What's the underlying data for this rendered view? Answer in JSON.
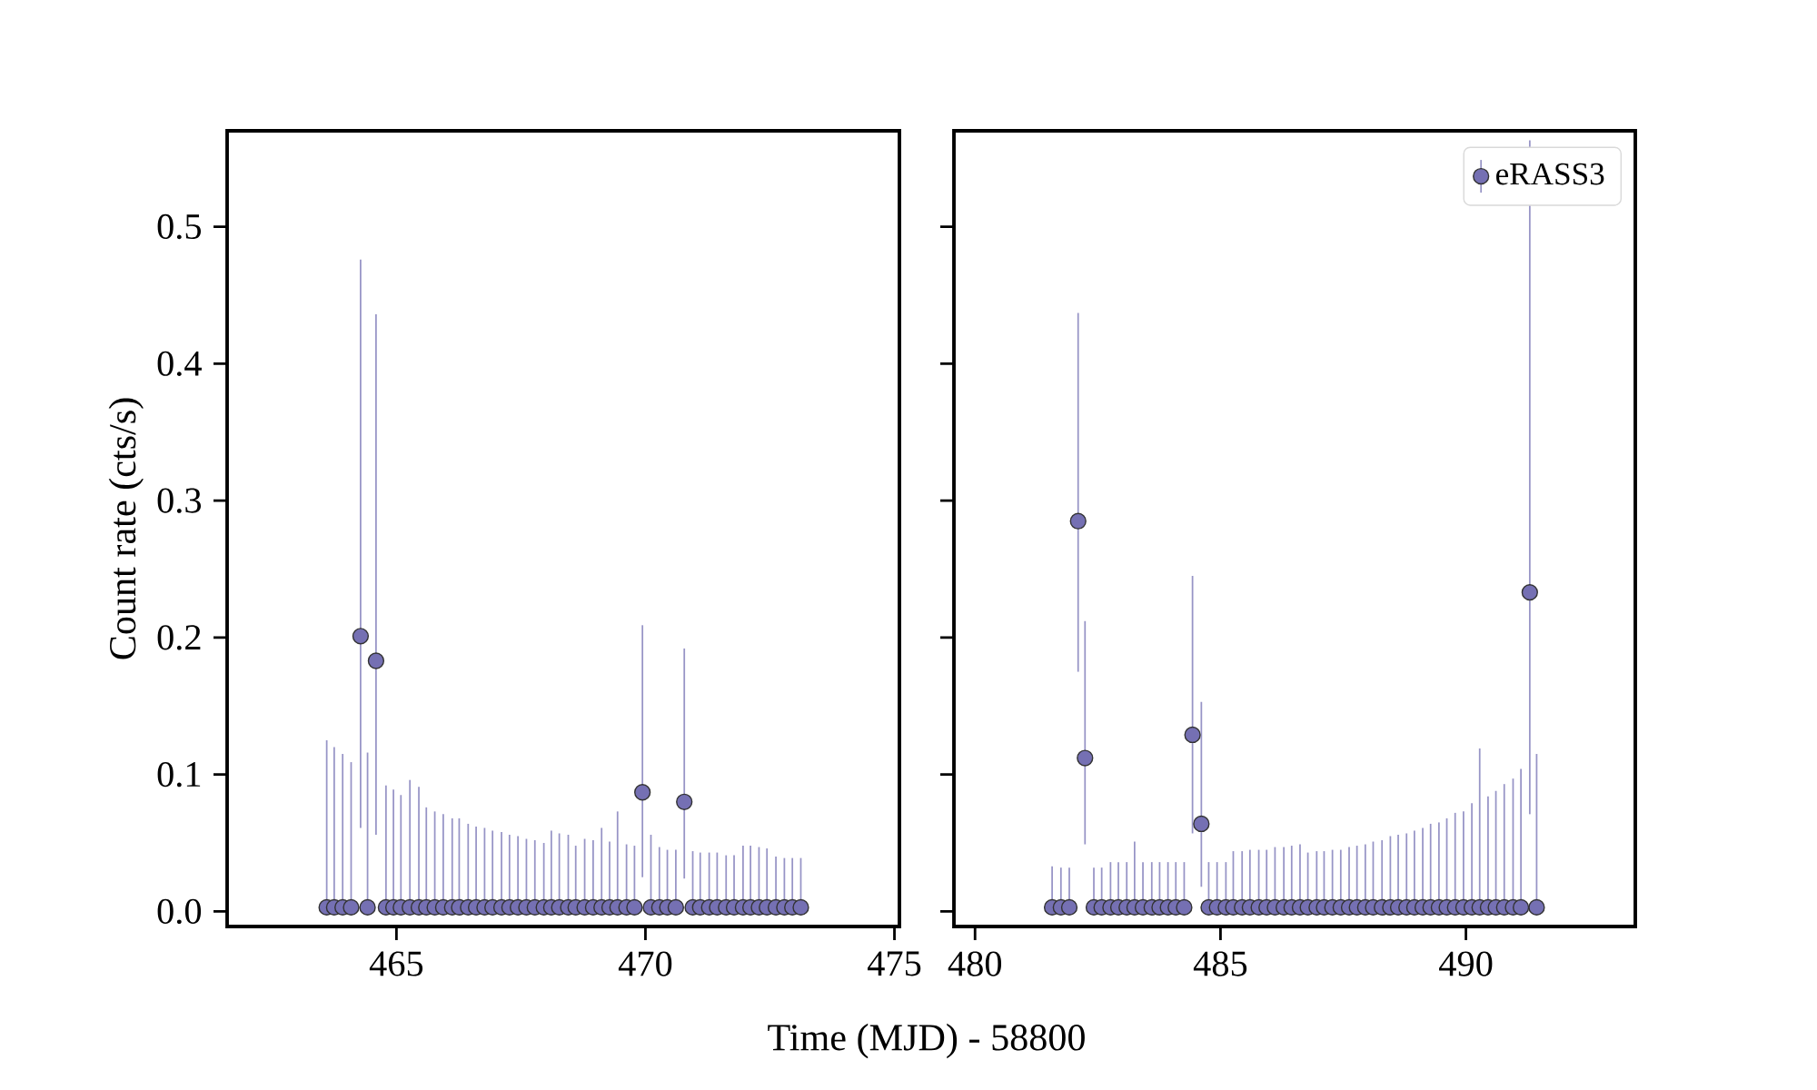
{
  "chart_data": [
    {
      "type": "scatter",
      "xlabel": "Time (MJD) - 58800",
      "ylabel": "Count rate (cts/s)",
      "marker": "circle",
      "legend": false,
      "xlim": [
        461.6,
        475.1
      ],
      "ylim": [
        -0.011,
        0.57
      ],
      "xticks": [
        465,
        470,
        475
      ],
      "yticks": [
        {
          "value": 0,
          "label": "0.0"
        },
        0.1,
        0.2,
        0.3,
        0.4,
        0.5
      ],
      "series": [
        {
          "color": "#7570b3",
          "x": [
            463.6,
            463.75,
            463.92,
            464.09,
            464.28,
            464.42,
            464.59,
            464.79,
            464.94,
            465.09,
            465.27,
            465.45,
            465.6,
            465.77,
            465.94,
            466.12,
            466.26,
            466.44,
            466.6,
            466.77,
            466.93,
            467.11,
            467.27,
            467.44,
            467.61,
            467.78,
            467.96,
            468.11,
            468.27,
            468.45,
            468.6,
            468.78,
            468.95,
            469.12,
            469.28,
            469.44,
            469.62,
            469.78,
            469.94,
            470.11,
            470.28,
            470.44,
            470.61,
            470.78,
            470.95,
            471.1,
            471.28,
            471.44,
            471.62,
            471.78,
            471.96,
            472.11,
            472.28,
            472.44,
            472.62,
            472.79,
            472.95,
            473.12
          ],
          "values": [
            0.003,
            0.003,
            0.003,
            0.003,
            0.201,
            0.003,
            0.183,
            0.003,
            0.003,
            0.003,
            0.003,
            0.003,
            0.003,
            0.003,
            0.003,
            0.003,
            0.003,
            0.003,
            0.003,
            0.003,
            0.003,
            0.003,
            0.003,
            0.003,
            0.003,
            0.003,
            0.003,
            0.003,
            0.003,
            0.003,
            0.003,
            0.003,
            0.003,
            0.003,
            0.003,
            0.003,
            0.003,
            0.003,
            0.087,
            0.003,
            0.003,
            0.003,
            0.003,
            0.08,
            0.003,
            0.003,
            0.003,
            0.003,
            0.003,
            0.003,
            0.003,
            0.003,
            0.003,
            0.003,
            0.003,
            0.003,
            0.003,
            0.003
          ],
          "errors": [
            [
              0,
              0.125
            ],
            [
              0,
              0.12
            ],
            [
              0,
              0.115
            ],
            [
              0,
              0.109
            ],
            [
              0.061,
              0.476
            ],
            [
              0,
              0.116
            ],
            [
              0.056,
              0.436
            ],
            [
              0,
              0.092
            ],
            [
              0,
              0.089
            ],
            [
              0,
              0.085
            ],
            [
              0,
              0.096
            ],
            [
              0,
              0.091
            ],
            [
              0,
              0.076
            ],
            [
              0,
              0.073
            ],
            [
              0,
              0.071
            ],
            [
              0,
              0.068
            ],
            [
              0,
              0.068
            ],
            [
              0,
              0.064
            ],
            [
              0,
              0.062
            ],
            [
              0,
              0.061
            ],
            [
              0,
              0.059
            ],
            [
              0,
              0.058
            ],
            [
              0,
              0.056
            ],
            [
              0,
              0.055
            ],
            [
              0,
              0.053
            ],
            [
              0,
              0.052
            ],
            [
              0,
              0.05
            ],
            [
              0,
              0.059
            ],
            [
              0,
              0.057
            ],
            [
              0,
              0.056
            ],
            [
              0,
              0.048
            ],
            [
              0,
              0.053
            ],
            [
              0,
              0.052
            ],
            [
              0,
              0.061
            ],
            [
              0,
              0.051
            ],
            [
              0,
              0.073
            ],
            [
              0,
              0.049
            ],
            [
              0,
              0.048
            ],
            [
              0.025,
              0.209
            ],
            [
              0,
              0.056
            ],
            [
              0,
              0.047
            ],
            [
              0,
              0.045
            ],
            [
              0,
              0.045
            ],
            [
              0.024,
              0.192
            ],
            [
              0,
              0.044
            ],
            [
              0,
              0.043
            ],
            [
              0,
              0.043
            ],
            [
              0,
              0.043
            ],
            [
              0,
              0.041
            ],
            [
              0,
              0.041
            ],
            [
              0,
              0.048
            ],
            [
              0,
              0.048
            ],
            [
              0,
              0.047
            ],
            [
              0,
              0.046
            ],
            [
              0,
              0.04
            ],
            [
              0,
              0.039
            ],
            [
              0,
              0.039
            ],
            [
              0,
              0.039
            ]
          ]
        }
      ]
    },
    {
      "type": "scatter",
      "marker": "circle",
      "legend": "top right",
      "tick_labels": "x",
      "xlim": [
        479.57,
        493.45
      ],
      "ylim": [
        -0.011,
        0.57
      ],
      "xticks": [
        480,
        485,
        490
      ],
      "yticks": [
        0,
        0.1,
        0.2,
        0.3,
        0.4,
        0.5
      ],
      "series": [
        {
          "name": "eRASS3",
          "color": "#7570b3",
          "x": [
            481.57,
            481.75,
            481.92,
            482.1,
            482.24,
            482.42,
            482.58,
            482.76,
            482.92,
            483.09,
            483.25,
            483.42,
            483.6,
            483.76,
            483.93,
            484.09,
            484.26,
            484.43,
            484.61,
            484.76,
            484.93,
            485.11,
            485.26,
            485.44,
            485.6,
            485.78,
            485.94,
            486.11,
            486.29,
            486.45,
            486.62,
            486.78,
            486.96,
            487.11,
            487.28,
            487.45,
            487.62,
            487.78,
            487.95,
            488.11,
            488.29,
            488.46,
            488.62,
            488.79,
            488.95,
            489.12,
            489.28,
            489.45,
            489.61,
            489.78,
            489.95,
            490.12,
            490.28,
            490.45,
            490.61,
            490.78,
            490.96,
            491.12,
            491.3,
            491.44
          ],
          "values": [
            0.003,
            0.003,
            0.003,
            0.285,
            0.112,
            0.003,
            0.003,
            0.003,
            0.003,
            0.003,
            0.003,
            0.003,
            0.003,
            0.003,
            0.003,
            0.003,
            0.003,
            0.129,
            0.064,
            0.003,
            0.003,
            0.003,
            0.003,
            0.003,
            0.003,
            0.003,
            0.003,
            0.003,
            0.003,
            0.003,
            0.003,
            0.003,
            0.003,
            0.003,
            0.003,
            0.003,
            0.003,
            0.003,
            0.003,
            0.003,
            0.003,
            0.003,
            0.003,
            0.003,
            0.003,
            0.003,
            0.003,
            0.003,
            0.003,
            0.003,
            0.003,
            0.003,
            0.003,
            0.003,
            0.003,
            0.003,
            0.003,
            0.003,
            0.233,
            0.003
          ],
          "errors": [
            [
              0,
              0.033
            ],
            [
              0,
              0.032
            ],
            [
              0,
              0.032
            ],
            [
              0.175,
              0.437
            ],
            [
              0.049,
              0.212
            ],
            [
              0,
              0.032
            ],
            [
              0,
              0.032
            ],
            [
              0,
              0.036
            ],
            [
              0,
              0.036
            ],
            [
              0,
              0.036
            ],
            [
              0,
              0.051
            ],
            [
              0,
              0.036
            ],
            [
              0,
              0.036
            ],
            [
              0,
              0.036
            ],
            [
              0,
              0.036
            ],
            [
              0,
              0.036
            ],
            [
              0,
              0.036
            ],
            [
              0.057,
              0.245
            ],
            [
              0.018,
              0.153
            ],
            [
              0,
              0.036
            ],
            [
              0,
              0.036
            ],
            [
              0,
              0.036
            ],
            [
              0,
              0.044
            ],
            [
              0,
              0.044
            ],
            [
              0,
              0.045
            ],
            [
              0,
              0.045
            ],
            [
              0,
              0.045
            ],
            [
              0,
              0.047
            ],
            [
              0,
              0.047
            ],
            [
              0,
              0.048
            ],
            [
              0,
              0.049
            ],
            [
              0,
              0.043
            ],
            [
              0,
              0.044
            ],
            [
              0,
              0.044
            ],
            [
              0,
              0.045
            ],
            [
              0,
              0.045
            ],
            [
              0,
              0.047
            ],
            [
              0,
              0.048
            ],
            [
              0,
              0.049
            ],
            [
              0,
              0.051
            ],
            [
              0,
              0.052
            ],
            [
              0,
              0.055
            ],
            [
              0,
              0.056
            ],
            [
              0,
              0.057
            ],
            [
              0,
              0.059
            ],
            [
              0,
              0.061
            ],
            [
              0,
              0.064
            ],
            [
              0,
              0.065
            ],
            [
              0,
              0.068
            ],
            [
              0,
              0.072
            ],
            [
              0,
              0.073
            ],
            [
              0,
              0.079
            ],
            [
              0,
              0.119
            ],
            [
              0,
              0.084
            ],
            [
              0,
              0.088
            ],
            [
              0,
              0.093
            ],
            [
              0,
              0.097
            ],
            [
              0,
              0.104
            ],
            [
              0.071,
              0.563
            ],
            [
              0,
              0.115
            ]
          ]
        }
      ]
    }
  ]
}
